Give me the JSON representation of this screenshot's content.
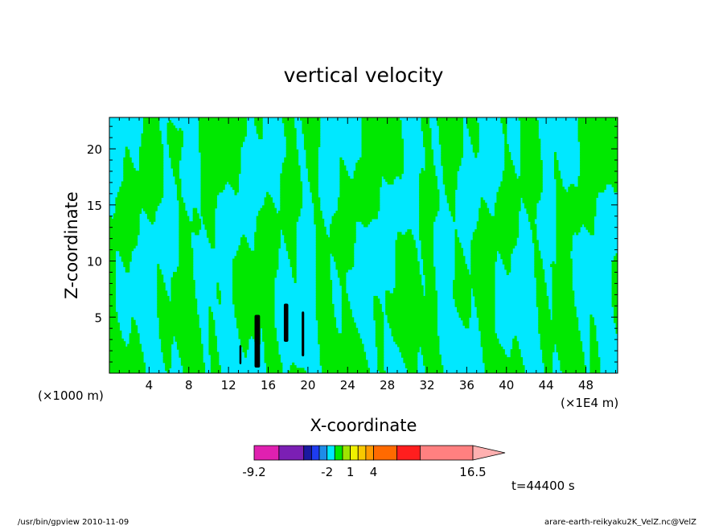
{
  "chart_data": {
    "type": "heatmap",
    "title": "vertical velocity",
    "xlabel": "X-coordinate",
    "ylabel": "Z-coordinate",
    "x_unit_left": "(×1000 m)",
    "x_unit_right": "(×1E4 m)",
    "x_ticks": [
      "4",
      "8",
      "12",
      "16",
      "20",
      "24",
      "28",
      "32",
      "36",
      "40",
      "44",
      "48"
    ],
    "y_ticks": [
      "5",
      "10",
      "15",
      "20"
    ],
    "xlim": [
      0,
      51.2
    ],
    "ylim": [
      0,
      22.8
    ],
    "time_label": "t=44400 s",
    "colorbar": {
      "labels": [
        "-9.2",
        "-2",
        "1",
        "4",
        "16.5"
      ],
      "label_values": [
        -9.2,
        -2,
        1,
        4,
        16.5
      ],
      "bins": [
        {
          "from": -9.2,
          "to": -6.8,
          "color": "#e020b0"
        },
        {
          "from": -6.8,
          "to": -4.4,
          "color": "#7b1fb4"
        },
        {
          "from": -4.4,
          "to": -3.6,
          "color": "#1a1aa0"
        },
        {
          "from": -3.6,
          "to": -2.8,
          "color": "#1e3cf0"
        },
        {
          "from": -2.8,
          "to": -2.0,
          "color": "#1e8ce8"
        },
        {
          "from": -2.0,
          "to": -1.0,
          "color": "#00e8ff"
        },
        {
          "from": -1.0,
          "to": 0.0,
          "color": "#00e800"
        },
        {
          "from": 0.0,
          "to": 1.0,
          "color": "#a0e400"
        },
        {
          "from": 1.0,
          "to": 2.0,
          "color": "#f0f000"
        },
        {
          "from": 2.0,
          "to": 3.0,
          "color": "#f8c800"
        },
        {
          "from": 3.0,
          "to": 4.0,
          "color": "#ff9a00"
        },
        {
          "from": 4.0,
          "to": 6.5,
          "color": "#ff6a00"
        },
        {
          "from": 6.5,
          "to": 9.0,
          "color": "#ff1e1e"
        },
        {
          "from": 9.0,
          "to": 16.5,
          "color": "#ff8080"
        }
      ],
      "extend_max_color": "#ffb0b0"
    },
    "field_colors": {
      "negative": "#00e8ff",
      "positive": "#00e800",
      "strong_negative": "#000000"
    },
    "grid": false,
    "legend": "bottom"
  },
  "footer": {
    "left": "/usr/bin/gpview   2010-11-09",
    "right": "arare-earth-reikyaku2K_VelZ.nc@VelZ"
  }
}
